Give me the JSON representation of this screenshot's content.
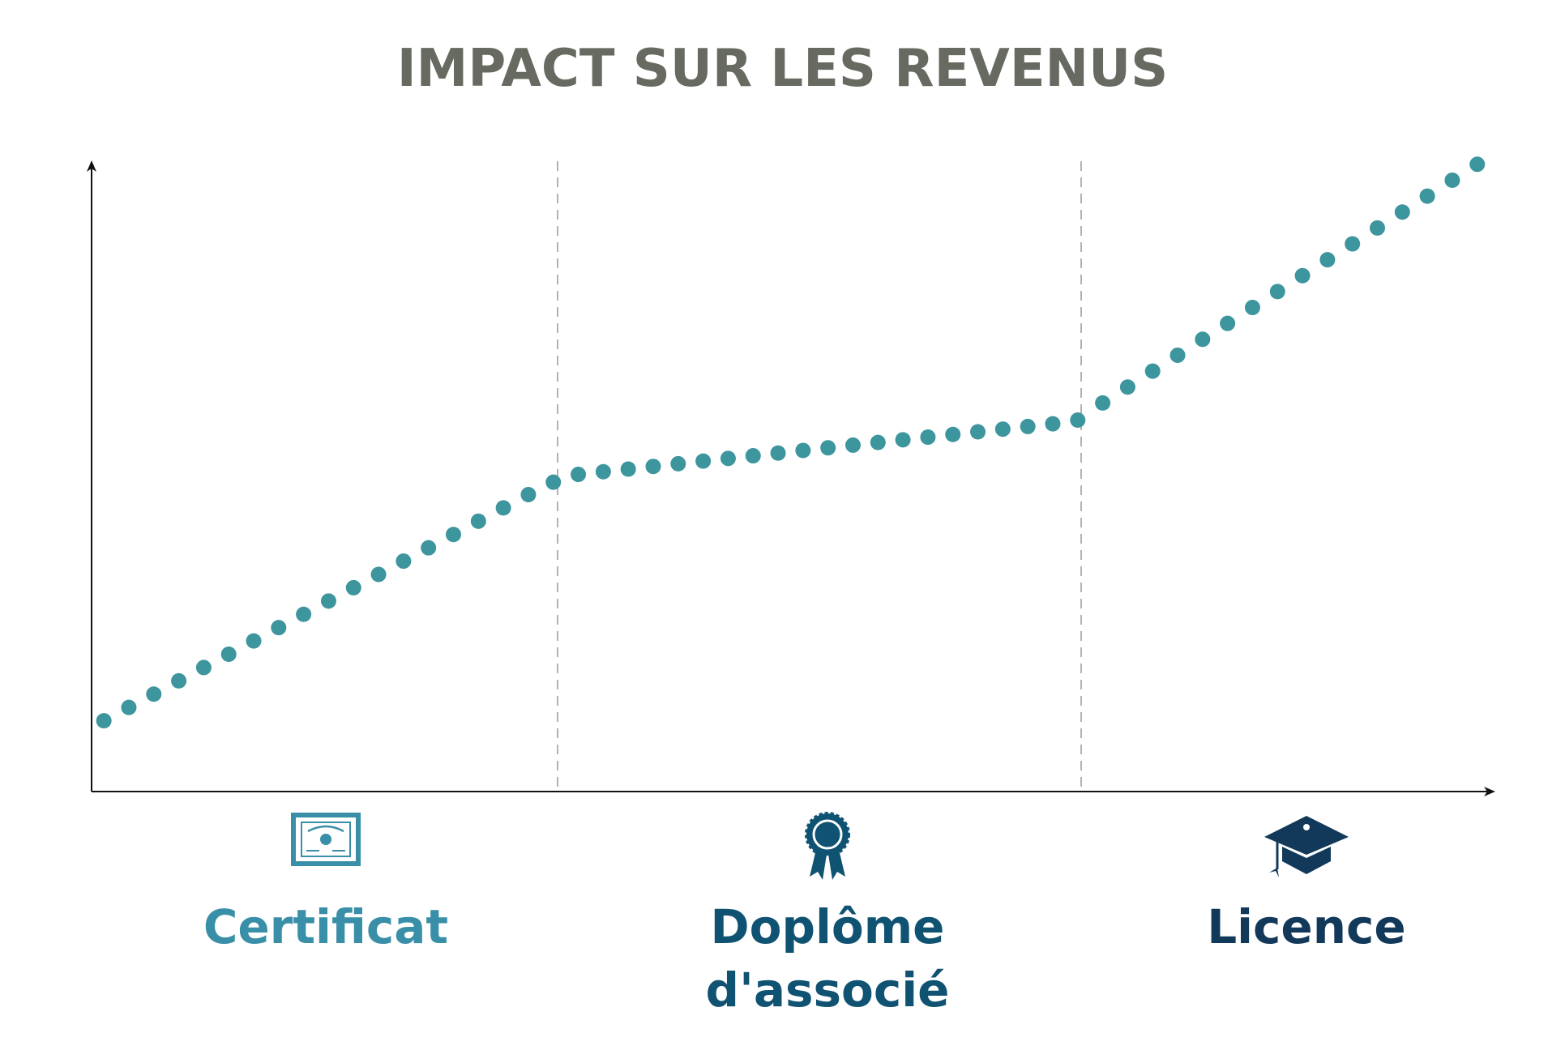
{
  "title": "IMPACT SUR LES REVENUS",
  "stages": [
    {
      "label": "Certificat"
    },
    {
      "label": "Doplôme d'associé"
    },
    {
      "label": "Licence"
    }
  ]
}
